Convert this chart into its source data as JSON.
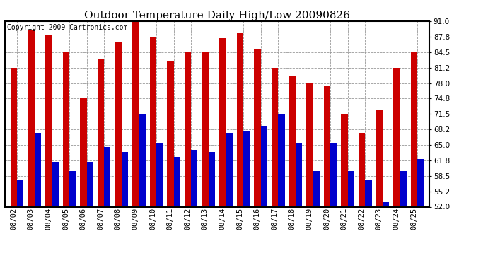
{
  "title": "Outdoor Temperature Daily High/Low 20090826",
  "copyright": "Copyright 2009 Cartronics.com",
  "dates": [
    "08/02",
    "08/03",
    "08/04",
    "08/05",
    "08/06",
    "08/07",
    "08/08",
    "08/09",
    "08/10",
    "08/11",
    "08/12",
    "08/13",
    "08/14",
    "08/15",
    "08/16",
    "08/17",
    "08/18",
    "08/19",
    "08/20",
    "08/21",
    "08/22",
    "08/23",
    "08/24",
    "08/25"
  ],
  "highs": [
    81.2,
    89.0,
    88.0,
    84.5,
    75.0,
    83.0,
    86.5,
    91.0,
    87.8,
    82.5,
    84.5,
    84.5,
    87.5,
    88.5,
    85.0,
    81.2,
    79.5,
    78.0,
    77.5,
    71.5,
    67.5,
    72.5,
    81.2,
    84.5
  ],
  "lows": [
    57.5,
    67.5,
    61.5,
    59.5,
    61.5,
    64.5,
    63.5,
    71.5,
    65.5,
    62.5,
    64.0,
    63.5,
    67.5,
    68.0,
    69.0,
    71.5,
    65.5,
    59.5,
    65.5,
    59.5,
    57.5,
    53.0,
    59.5,
    62.0
  ],
  "high_color": "#cc0000",
  "low_color": "#0000cc",
  "background_color": "#ffffff",
  "plot_bg_color": "#ffffff",
  "grid_color": "#999999",
  "ymin": 52.0,
  "ymax": 91.0,
  "yticks": [
    52.0,
    55.2,
    58.5,
    61.8,
    65.0,
    68.2,
    71.5,
    74.8,
    78.0,
    81.2,
    84.5,
    87.8,
    91.0
  ],
  "title_fontsize": 11,
  "copyright_fontsize": 7,
  "tick_fontsize": 7.5,
  "bar_width": 0.38
}
